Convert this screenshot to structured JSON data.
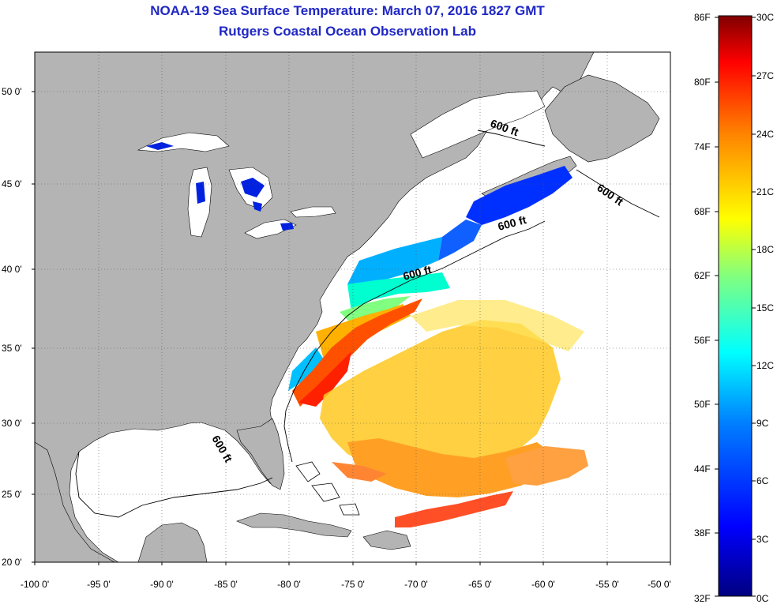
{
  "title": "NOAA-19 Sea Surface Temperature:  March 07, 2016 1827 GMT",
  "subtitle": "Rutgers Coastal Ocean Observation Lab",
  "lat_labels": [
    "50 0'",
    "45 0'",
    "40 0'",
    "35 0'",
    "30 0'",
    "25 0'",
    "20 0'"
  ],
  "lon_labels": [
    "-100 0'",
    "-95 0'",
    "-90 0'",
    "-85 0'",
    "-80 0'",
    "-75 0'",
    "-70 0'",
    "-65 0'",
    "-60 0'",
    "-55 0'",
    "-50 0'"
  ],
  "contour_label": "600 ft",
  "colorbar": {
    "f_labels": [
      "86F",
      "80F",
      "74F",
      "68F",
      "62F",
      "56F",
      "50F",
      "44F",
      "38F",
      "32F"
    ],
    "c_labels": [
      "30C",
      "27C",
      "24C",
      "21C",
      "18C",
      "15C",
      "12C",
      "9C",
      "6C",
      "3C",
      "0C"
    ],
    "colors": [
      "#000080",
      "#0000ff",
      "#0080ff",
      "#00ffff",
      "#80ff80",
      "#ffff00",
      "#ff8000",
      "#ff0000",
      "#800000"
    ]
  },
  "colors": {
    "land": "#b4b4b4",
    "ocean": "#ffffff",
    "title": "#1f27c4"
  }
}
